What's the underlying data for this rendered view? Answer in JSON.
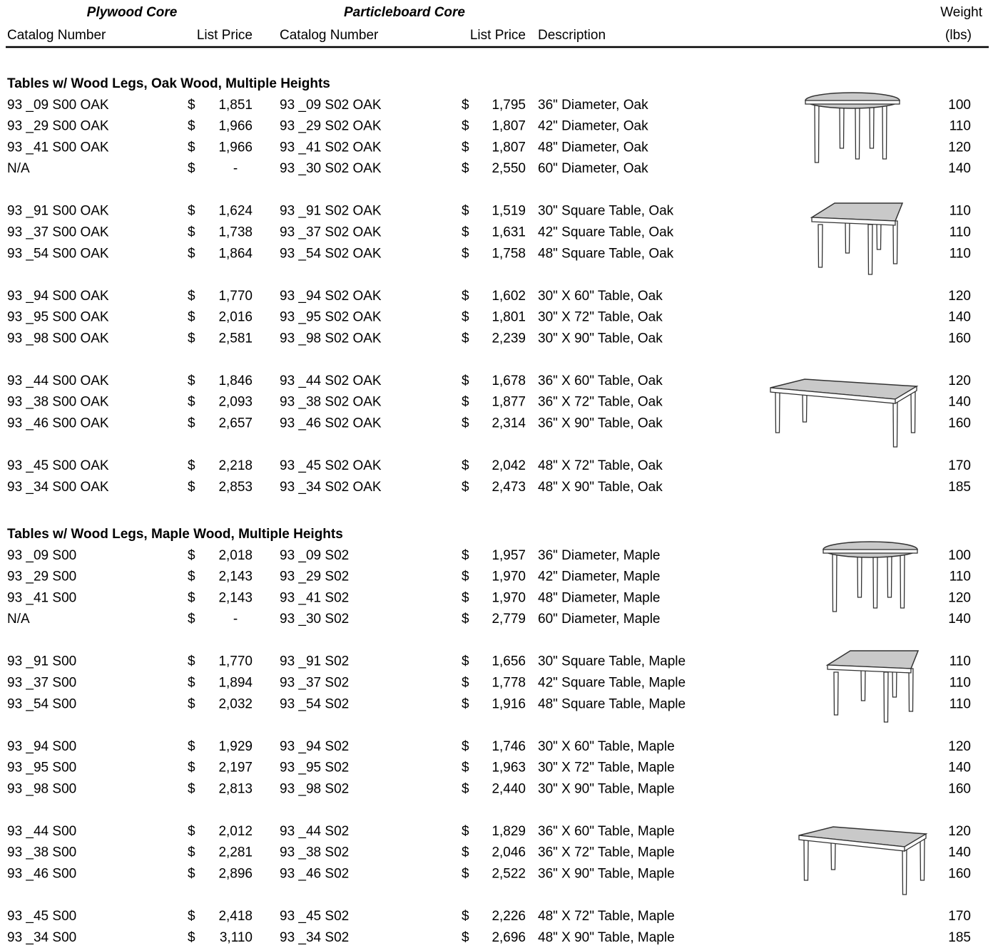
{
  "header": {
    "group_headers": [
      "Plywood Core",
      "Particleboard Core"
    ],
    "columns": [
      "Catalog Number",
      "List Price",
      "Catalog Number",
      "List Price",
      "Description"
    ],
    "weight_header": [
      "Weight",
      "(lbs)"
    ]
  },
  "currency_symbol": "$",
  "sections": [
    {
      "title": "Tables w/ Wood Legs, Oak Wood, Multiple Heights",
      "groups": [
        [
          [
            "93 _09 S00 OAK",
            "1,851",
            "93 _09 S02 OAK",
            "1,795",
            "36\" Diameter, Oak",
            "100"
          ],
          [
            "93 _29 S00 OAK",
            "1,966",
            "93 _29 S02 OAK",
            "1,807",
            "42\" Diameter, Oak",
            "110"
          ],
          [
            "93 _41 S00 OAK",
            "1,966",
            "93 _41 S02 OAK",
            "1,807",
            "48\" Diameter, Oak",
            "120"
          ],
          [
            "N/A",
            "-",
            "93 _30 S02 OAK",
            "2,550",
            "60\" Diameter, Oak",
            "140"
          ]
        ],
        [
          [
            "93 _91 S00 OAK",
            "1,624",
            "93 _91 S02 OAK",
            "1,519",
            "30\" Square Table, Oak",
            "110"
          ],
          [
            "93 _37 S00 OAK",
            "1,738",
            "93 _37 S02 OAK",
            "1,631",
            "42\" Square Table, Oak",
            "110"
          ],
          [
            "93 _54 S00 OAK",
            "1,864",
            "93 _54 S02 OAK",
            "1,758",
            "48\" Square Table, Oak",
            "110"
          ]
        ],
        [
          [
            "93 _94 S00 OAK",
            "1,770",
            "93 _94 S02 OAK",
            "1,602",
            "30\" X 60\" Table, Oak",
            "120"
          ],
          [
            "93 _95 S00 OAK",
            "2,016",
            "93 _95 S02 OAK",
            "1,801",
            "30\" X 72\" Table, Oak",
            "140"
          ],
          [
            "93 _98 S00 OAK",
            "2,581",
            "93 _98 S02 OAK",
            "2,239",
            "30\" X 90\" Table, Oak",
            "160"
          ]
        ],
        [
          [
            "93 _44 S00 OAK",
            "1,846",
            "93 _44 S02 OAK",
            "1,678",
            "36\" X 60\" Table, Oak",
            "120"
          ],
          [
            "93 _38 S00 OAK",
            "2,093",
            "93 _38 S02 OAK",
            "1,877",
            "36\" X 72\" Table, Oak",
            "140"
          ],
          [
            "93 _46 S00 OAK",
            "2,657",
            "93 _46 S02 OAK",
            "2,314",
            "36\" X 90\" Table, Oak",
            "160"
          ]
        ],
        [
          [
            "93 _45 S00 OAK",
            "2,218",
            "93 _45 S02 OAK",
            "2,042",
            "48\" X 72\" Table, Oak",
            "170"
          ],
          [
            "93 _34 S00 OAK",
            "2,853",
            "93 _34 S02 OAK",
            "2,473",
            "48\" X 90\" Table, Oak",
            "185"
          ]
        ]
      ]
    },
    {
      "title": "Tables w/ Wood Legs, Maple Wood, Multiple Heights",
      "groups": [
        [
          [
            "93 _09 S00",
            "2,018",
            "93 _09 S02",
            "1,957",
            "36\" Diameter, Maple",
            "100"
          ],
          [
            "93 _29 S00",
            "2,143",
            "93 _29 S02",
            "1,970",
            "42\" Diameter, Maple",
            "110"
          ],
          [
            "93 _41 S00",
            "2,143",
            "93 _41 S02",
            "1,970",
            "48\" Diameter, Maple",
            "120"
          ],
          [
            "N/A",
            "-",
            "93 _30 S02",
            "2,779",
            "60\" Diameter, Maple",
            "140"
          ]
        ],
        [
          [
            "93 _91 S00",
            "1,770",
            "93 _91 S02",
            "1,656",
            "30\" Square Table, Maple",
            "110"
          ],
          [
            "93 _37 S00",
            "1,894",
            "93 _37 S02",
            "1,778",
            "42\" Square Table, Maple",
            "110"
          ],
          [
            "93 _54 S00",
            "2,032",
            "93 _54 S02",
            "1,916",
            "48\" Square Table, Maple",
            "110"
          ]
        ],
        [
          [
            "93 _94 S00",
            "1,929",
            "93 _94 S02",
            "1,746",
            "30\" X 60\" Table, Maple",
            "120"
          ],
          [
            "93 _95 S00",
            "2,197",
            "93 _95 S02",
            "1,963",
            "30\" X 72\" Table, Maple",
            "140"
          ],
          [
            "93 _98 S00",
            "2,813",
            "93 _98 S02",
            "2,440",
            "30\" X 90\" Table, Maple",
            "160"
          ]
        ],
        [
          [
            "93 _44 S00",
            "2,012",
            "93 _44 S02",
            "1,829",
            "36\" X 60\" Table, Maple",
            "120"
          ],
          [
            "93 _38 S00",
            "2,281",
            "93 _38 S02",
            "2,046",
            "36\" X 72\" Table, Maple",
            "140"
          ],
          [
            "93 _46 S00",
            "2,896",
            "93 _46 S02",
            "2,522",
            "36\" X 90\" Table, Maple",
            "160"
          ]
        ],
        [
          [
            "93 _45 S00",
            "2,418",
            "93 _45 S02",
            "2,226",
            "48\" X 72\" Table, Maple",
            "170"
          ],
          [
            "93 _34 S00",
            "3,110",
            "93 _34 S02",
            "2,696",
            "48\" X 90\" Table, Maple",
            "185"
          ]
        ]
      ]
    }
  ]
}
